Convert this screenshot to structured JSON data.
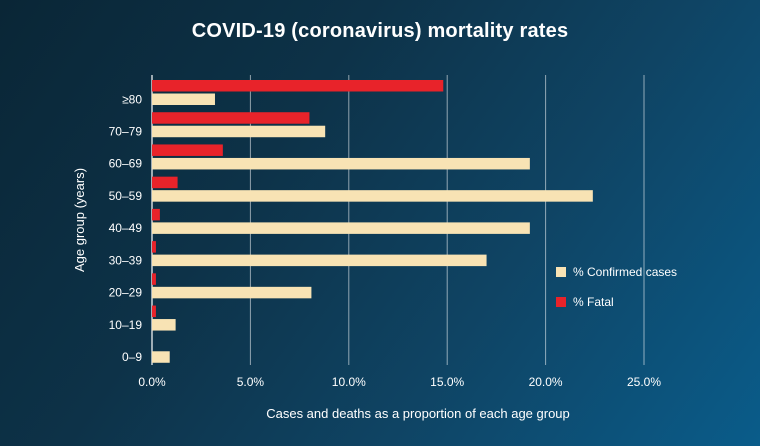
{
  "chart_data": {
    "type": "bar",
    "orientation": "horizontal",
    "title": "COVID-19 (coronavirus) mortality rates",
    "xlabel": "Cases and deaths as a proportion of each age group",
    "ylabel": "Age group (years)",
    "categories": [
      "0–9",
      "10–19",
      "20–29",
      "30–39",
      "40–49",
      "50–59",
      "60–69",
      "70–79",
      "≥80"
    ],
    "series": [
      {
        "name": "% Confirmed cases",
        "color": "#f8e3b4",
        "values": [
          0.9,
          1.2,
          8.1,
          17.0,
          19.2,
          22.4,
          19.2,
          8.8,
          3.2
        ]
      },
      {
        "name": "% Fatal",
        "color": "#e8232a",
        "values": [
          0,
          0.2,
          0.2,
          0.2,
          0.4,
          1.3,
          3.6,
          8.0,
          14.8
        ]
      }
    ],
    "xlim": [
      0,
      25
    ],
    "xticks": [
      0,
      5,
      10,
      15,
      20,
      25
    ],
    "xtick_labels": [
      "0.0%",
      "5.0%",
      "10.0%",
      "15.0%",
      "20.0%",
      "25.0%"
    ],
    "grid": "vertical",
    "legend_position": "right"
  }
}
